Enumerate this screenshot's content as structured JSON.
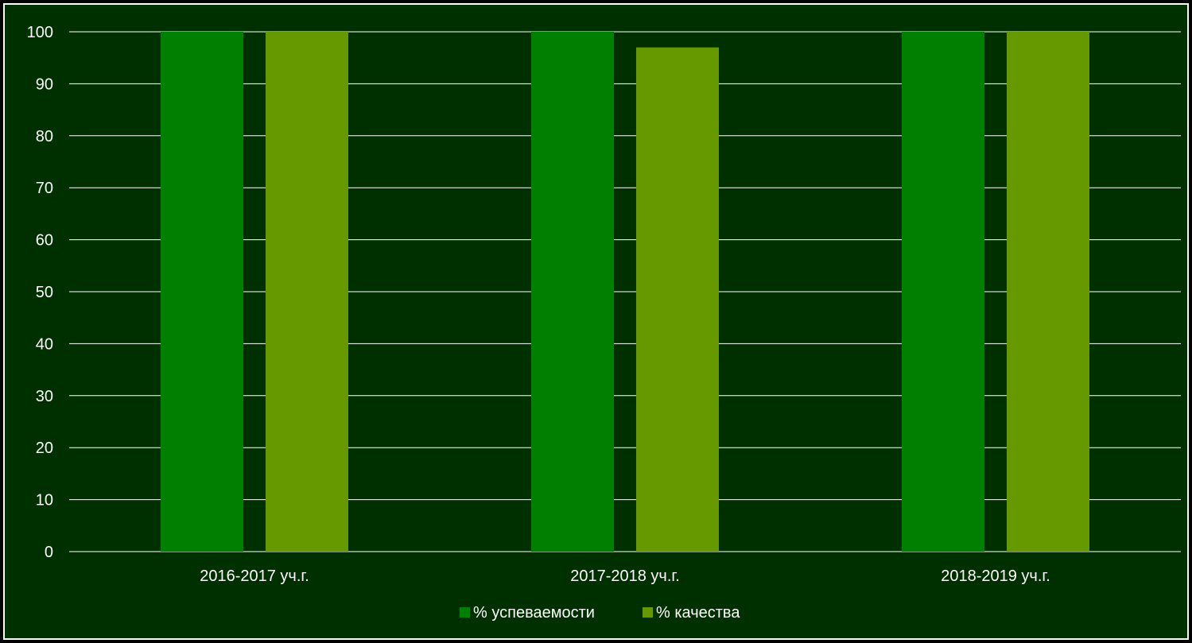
{
  "colors": {
    "background": "#003000",
    "frame": "#ffffff",
    "grid": "#ffffff",
    "text": "#ffffff",
    "series_1": "#007f00",
    "series_2": "#669900"
  },
  "chart_data": {
    "type": "bar",
    "title": "",
    "xlabel": "",
    "ylabel": "",
    "categories": [
      "2016-2017 уч.г.",
      "2017-2018 уч.г.",
      "2018-2019 уч.г."
    ],
    "series": [
      {
        "name": "% успеваемости",
        "values": [
          100,
          100,
          100
        ],
        "color": "#007f00"
      },
      {
        "name": "% качества",
        "values": [
          100,
          97,
          100
        ],
        "color": "#669900"
      }
    ],
    "ylim": [
      0,
      100
    ],
    "yticks": [
      "0",
      "10",
      "20",
      "30",
      "40",
      "50",
      "60",
      "70",
      "80",
      "90",
      "100"
    ],
    "grid": true,
    "legend_position": "bottom"
  }
}
